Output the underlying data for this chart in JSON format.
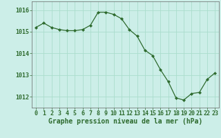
{
  "x": [
    0,
    1,
    2,
    3,
    4,
    5,
    6,
    7,
    8,
    9,
    10,
    11,
    12,
    13,
    14,
    15,
    16,
    17,
    18,
    19,
    20,
    21,
    22,
    23
  ],
  "y": [
    1015.2,
    1015.4,
    1015.2,
    1015.1,
    1015.05,
    1015.05,
    1015.1,
    1015.3,
    1015.9,
    1015.9,
    1015.8,
    1015.6,
    1015.1,
    1014.8,
    1014.15,
    1013.9,
    1013.25,
    1012.7,
    1011.95,
    1011.85,
    1012.15,
    1012.2,
    1012.8,
    1013.1
  ],
  "line_color": "#2d6a2d",
  "marker": "D",
  "marker_size": 2.2,
  "background_color": "#cceee8",
  "grid_color": "#aaddcc",
  "xlabel": "Graphe pression niveau de la mer (hPa)",
  "xlabel_fontsize": 7,
  "tick_fontsize": 6,
  "ylabel_ticks": [
    1012,
    1013,
    1014,
    1015,
    1016
  ],
  "ylim": [
    1011.5,
    1016.4
  ],
  "xlim": [
    -0.5,
    23.5
  ],
  "axis_color": "#666666",
  "label_color": "#2d6a2d",
  "linewidth": 0.9
}
